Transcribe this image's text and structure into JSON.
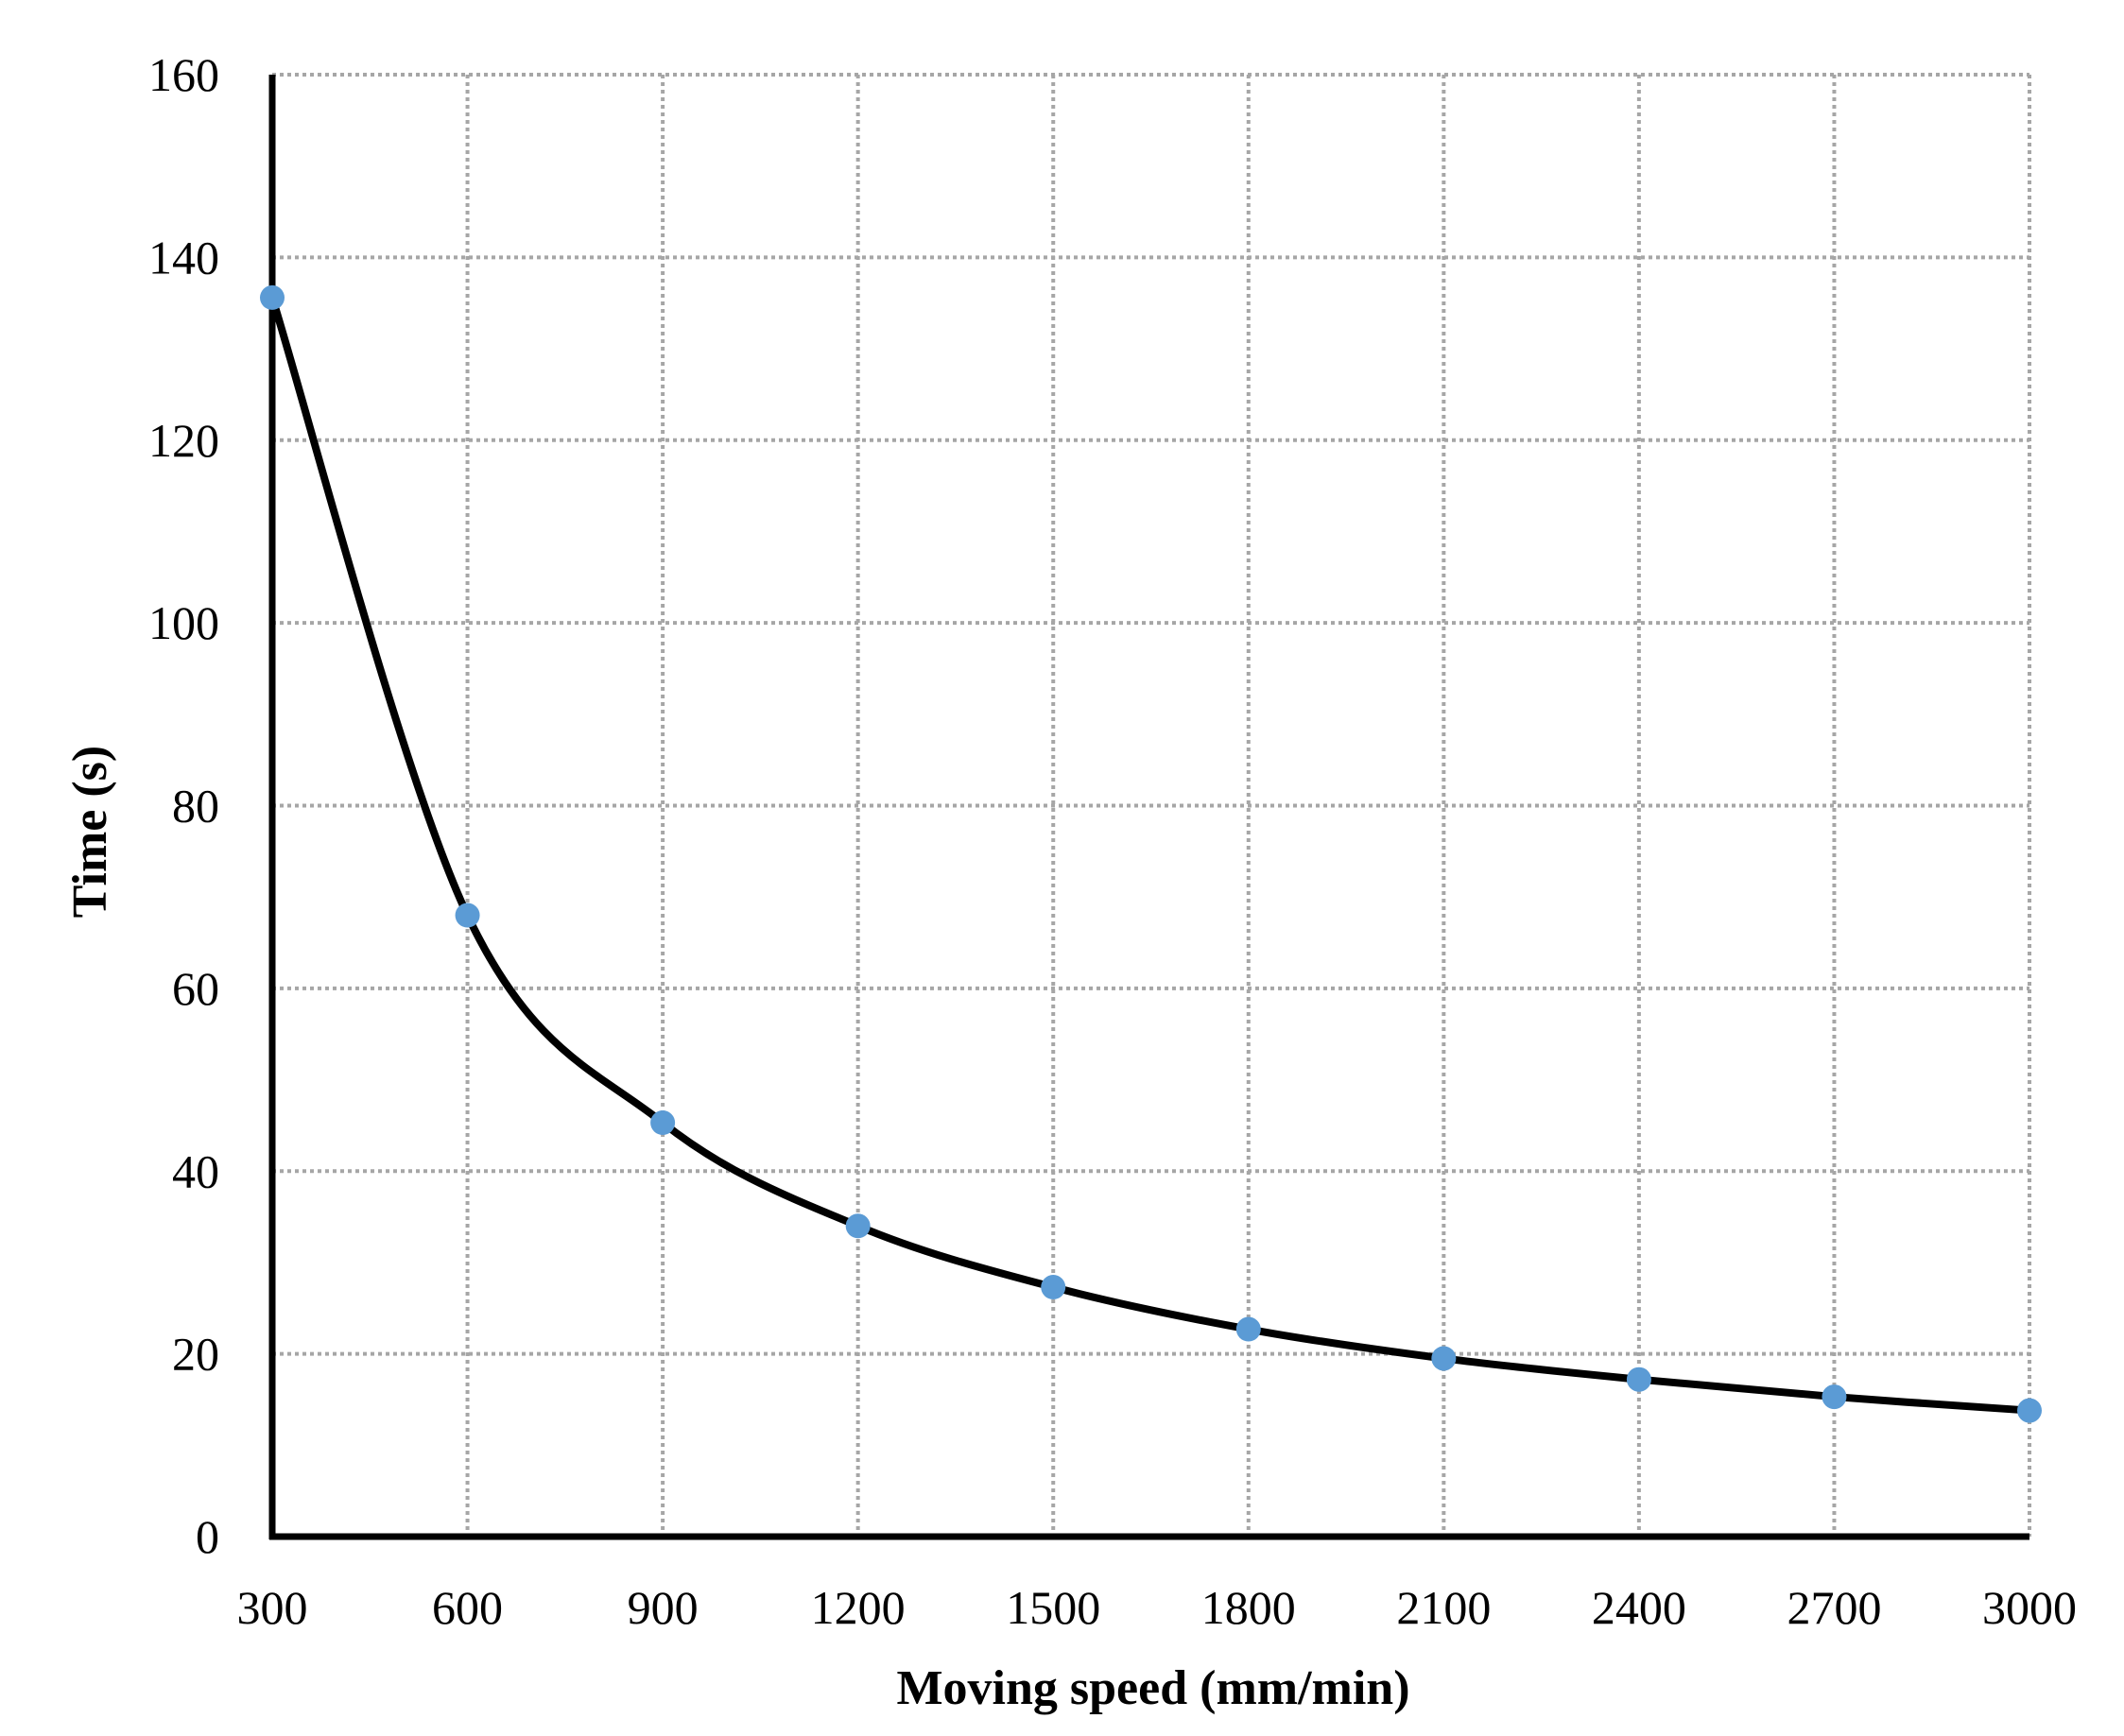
{
  "chart_data": {
    "type": "line",
    "title": "",
    "xlabel": "Moving speed (mm/min)",
    "ylabel": "Time (s)",
    "x": [
      300,
      600,
      900,
      1200,
      1500,
      1800,
      2100,
      2400,
      2700,
      3000
    ],
    "series": [
      {
        "values": [
          135.6,
          68.0,
          45.3,
          34.0,
          27.3,
          22.7,
          19.5,
          17.2,
          15.3,
          13.8
        ],
        "line_color": "#000000",
        "marker_color": "#5b9bd5",
        "smooth": true
      }
    ],
    "xlim": [
      300,
      3000
    ],
    "ylim": [
      0,
      160
    ],
    "x_ticks": [
      "300",
      "600",
      "900",
      "1200",
      "1500",
      "1800",
      "2100",
      "2400",
      "2700",
      "3000"
    ],
    "y_ticks": [
      "0",
      "20",
      "40",
      "60",
      "80",
      "100",
      "120",
      "140",
      "160"
    ],
    "grid": true,
    "legend": "none"
  }
}
